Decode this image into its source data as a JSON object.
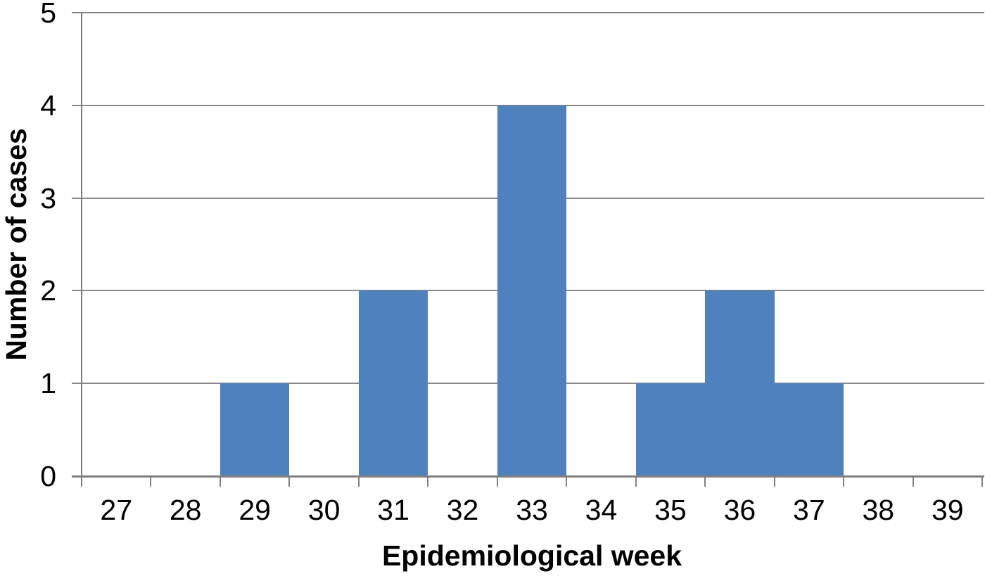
{
  "chart_data": {
    "type": "bar",
    "title": "",
    "xlabel": "Epidemiological week",
    "ylabel": "Number of cases",
    "categories": [
      "27",
      "28",
      "29",
      "30",
      "31",
      "32",
      "33",
      "34",
      "35",
      "36",
      "37",
      "38",
      "39"
    ],
    "values": [
      0,
      0,
      1,
      0,
      2,
      0,
      4,
      0,
      1,
      2,
      1,
      0,
      0
    ],
    "series": [
      {
        "name": "Number of cases",
        "values": [
          0,
          0,
          1,
          0,
          2,
          0,
          4,
          0,
          1,
          2,
          1,
          0,
          0
        ]
      }
    ],
    "ylim": [
      0,
      5
    ],
    "yticks": [
      "0",
      "1",
      "2",
      "3",
      "4",
      "5"
    ],
    "grid": "horizontal",
    "legend": "none",
    "bar_gap_percent": 0,
    "colors": {
      "bar": "#4f81bd",
      "gridline": "#878787",
      "axis": "#7f7f7f",
      "text": "#000000",
      "background": "#ffffff"
    }
  }
}
